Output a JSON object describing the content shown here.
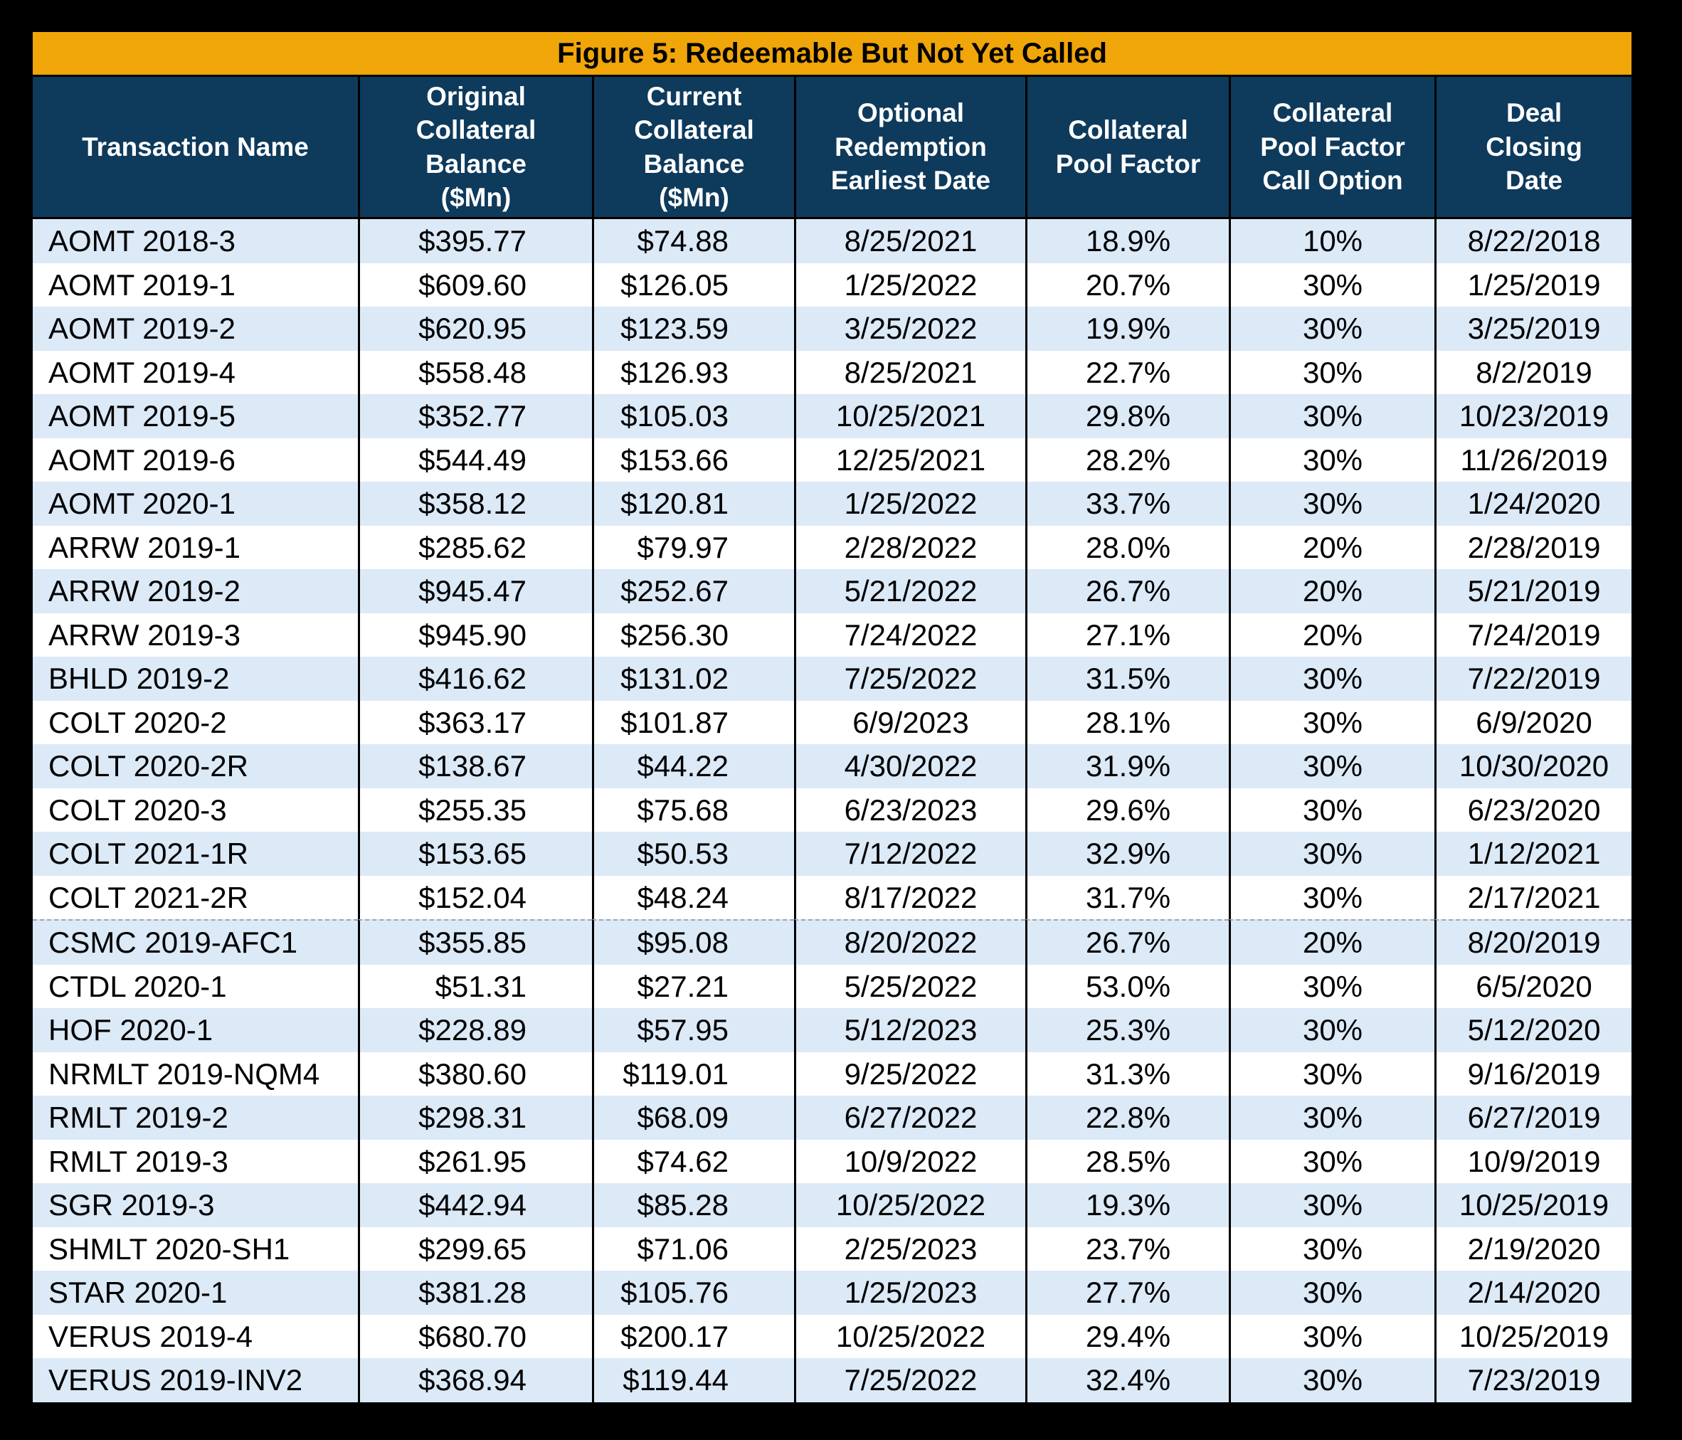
{
  "chart_data": {
    "type": "table",
    "title": "Figure 5: Redeemable But Not Yet Called",
    "columns": [
      "Transaction Name",
      "Original\nCollateral\nBalance\n($Mn)",
      "Current\nCollateral\nBalance\n($Mn)",
      "Optional\nRedemption\nEarliest Date",
      "Collateral\nPool Factor",
      "Collateral\nPool Factor\nCall Option",
      "Deal\nClosing\nDate"
    ],
    "rows": [
      [
        "AOMT 2018-3",
        "$395.77",
        "$74.88",
        "8/25/2021",
        "18.9%",
        "10%",
        "8/22/2018"
      ],
      [
        "AOMT 2019-1",
        "$609.60",
        "$126.05",
        "1/25/2022",
        "20.7%",
        "30%",
        "1/25/2019"
      ],
      [
        "AOMT 2019-2",
        "$620.95",
        "$123.59",
        "3/25/2022",
        "19.9%",
        "30%",
        "3/25/2019"
      ],
      [
        "AOMT 2019-4",
        "$558.48",
        "$126.93",
        "8/25/2021",
        "22.7%",
        "30%",
        "8/2/2019"
      ],
      [
        "AOMT 2019-5",
        "$352.77",
        "$105.03",
        "10/25/2021",
        "29.8%",
        "30%",
        "10/23/2019"
      ],
      [
        "AOMT 2019-6",
        "$544.49",
        "$153.66",
        "12/25/2021",
        "28.2%",
        "30%",
        "11/26/2019"
      ],
      [
        "AOMT 2020-1",
        "$358.12",
        "$120.81",
        "1/25/2022",
        "33.7%",
        "30%",
        "1/24/2020"
      ],
      [
        "ARRW 2019-1",
        "$285.62",
        "$79.97",
        "2/28/2022",
        "28.0%",
        "20%",
        "2/28/2019"
      ],
      [
        "ARRW 2019-2",
        "$945.47",
        "$252.67",
        "5/21/2022",
        "26.7%",
        "20%",
        "5/21/2019"
      ],
      [
        "ARRW 2019-3",
        "$945.90",
        "$256.30",
        "7/24/2022",
        "27.1%",
        "20%",
        "7/24/2019"
      ],
      [
        "BHLD 2019-2",
        "$416.62",
        "$131.02",
        "7/25/2022",
        "31.5%",
        "30%",
        "7/22/2019"
      ],
      [
        "COLT 2020-2",
        "$363.17",
        "$101.87",
        "6/9/2023",
        "28.1%",
        "30%",
        "6/9/2020"
      ],
      [
        "COLT 2020-2R",
        "$138.67",
        "$44.22",
        "4/30/2022",
        "31.9%",
        "30%",
        "10/30/2020"
      ],
      [
        "COLT 2020-3",
        "$255.35",
        "$75.68",
        "6/23/2023",
        "29.6%",
        "30%",
        "6/23/2020"
      ],
      [
        "COLT 2021-1R",
        "$153.65",
        "$50.53",
        "7/12/2022",
        "32.9%",
        "30%",
        "1/12/2021"
      ],
      [
        "COLT 2021-2R",
        "$152.04",
        "$48.24",
        "8/17/2022",
        "31.7%",
        "30%",
        "2/17/2021"
      ],
      [
        "CSMC 2019-AFC1",
        "$355.85",
        "$95.08",
        "8/20/2022",
        "26.7%",
        "20%",
        "8/20/2019"
      ],
      [
        "CTDL 2020-1",
        "$51.31",
        "$27.21",
        "5/25/2022",
        "53.0%",
        "30%",
        "6/5/2020"
      ],
      [
        "HOF 2020-1",
        "$228.89",
        "$57.95",
        "5/12/2023",
        "25.3%",
        "30%",
        "5/12/2020"
      ],
      [
        "NRMLT 2019-NQM4",
        "$380.60",
        "$119.01",
        "9/25/2022",
        "31.3%",
        "30%",
        "9/16/2019"
      ],
      [
        "RMLT 2019-2",
        "$298.31",
        "$68.09",
        "6/27/2022",
        "22.8%",
        "30%",
        "6/27/2019"
      ],
      [
        "RMLT 2019-3",
        "$261.95",
        "$74.62",
        "10/9/2022",
        "28.5%",
        "30%",
        "10/9/2019"
      ],
      [
        "SGR 2019-3",
        "$442.94",
        "$85.28",
        "10/25/2022",
        "19.3%",
        "30%",
        "10/25/2019"
      ],
      [
        "SHMLT 2020-SH1",
        "$299.65",
        "$71.06",
        "2/25/2023",
        "23.7%",
        "30%",
        "2/19/2020"
      ],
      [
        "STAR 2020-1",
        "$381.28",
        "$105.76",
        "1/25/2023",
        "27.7%",
        "30%",
        "2/14/2020"
      ],
      [
        "VERUS 2019-4",
        "$680.70",
        "$200.17",
        "10/25/2022",
        "29.4%",
        "30%",
        "10/25/2019"
      ],
      [
        "VERUS 2019-INV2",
        "$368.94",
        "$119.44",
        "7/25/2022",
        "32.4%",
        "30%",
        "7/23/2019"
      ]
    ],
    "page_break_row_index": 16,
    "layout_hints": {
      "striped_rows": true,
      "first_data_row_stripe": "light-blue"
    }
  },
  "colors": {
    "title_bar_bg": "#F0A608",
    "title_text": "#000000",
    "header_bg": "#0E3A5C",
    "header_text": "#FFFFFF",
    "row_stripe": "#DCE9F7",
    "row_alt": "#FFFFFF",
    "data_text": "#000000",
    "grid_line": "#000000",
    "page_bg": "#000000"
  }
}
